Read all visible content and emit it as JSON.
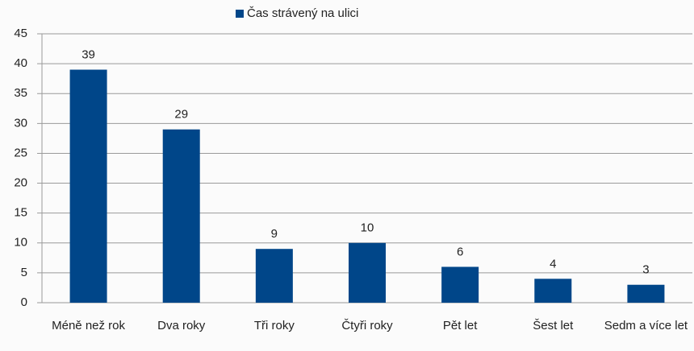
{
  "chart_data": {
    "type": "bar",
    "categories": [
      "Méně než rok",
      "Dva roky",
      "Tři roky",
      "Čtyři roky",
      "Pět let",
      "Šest let",
      "Sedm a více let"
    ],
    "series": [
      {
        "name": "Čas strávený na ulici",
        "color": "#004689",
        "values": [
          39,
          29,
          9,
          10,
          6,
          4,
          3
        ]
      }
    ],
    "ylim": [
      0,
      45
    ],
    "yticks": [
      0,
      5,
      10,
      15,
      20,
      25,
      30,
      35,
      40,
      45
    ],
    "grid": true,
    "legend": "top"
  }
}
